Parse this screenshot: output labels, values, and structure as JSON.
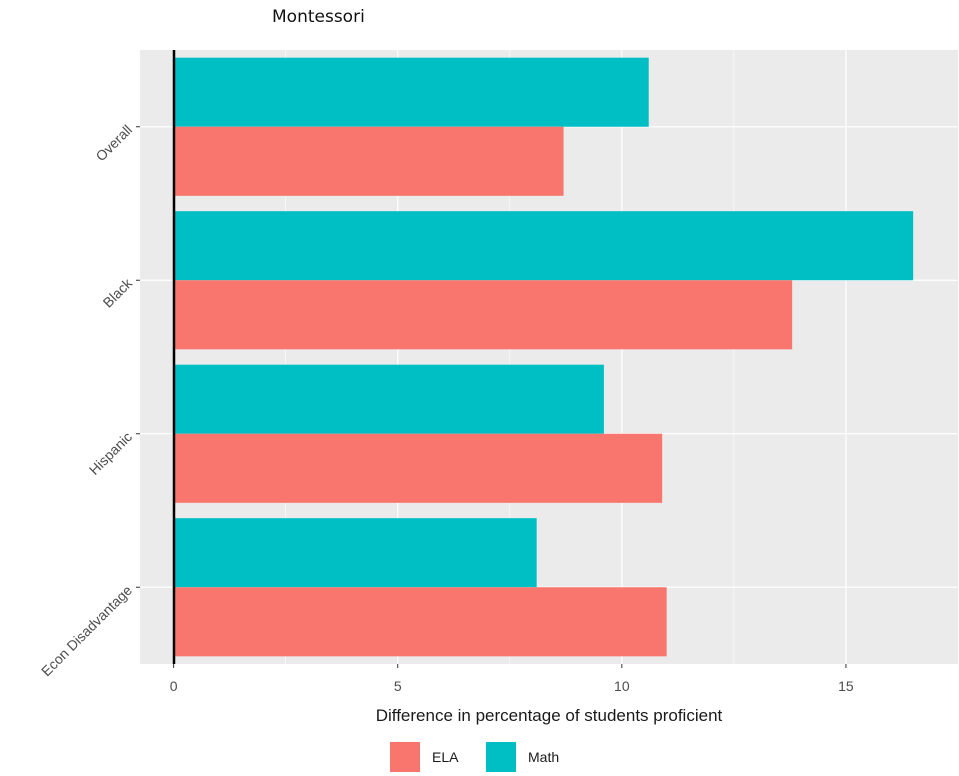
{
  "chart_data": {
    "type": "bar",
    "orientation": "horizontal",
    "title": "Montessori",
    "xlabel": "Difference in percentage of students proficient",
    "ylabel": "",
    "xlim": [
      -0.75,
      17.5
    ],
    "xticks": [
      0,
      5,
      10,
      15
    ],
    "grid": true,
    "legend_position": "bottom",
    "categories": [
      "Overall",
      "Black",
      "Hispanic",
      "Econ Disadvantage"
    ],
    "series": [
      {
        "name": "ELA",
        "color": "#F8766D",
        "values": [
          8.7,
          13.8,
          10.9,
          11.0
        ]
      },
      {
        "name": "Math",
        "color": "#00BFC4",
        "values": [
          10.6,
          16.5,
          9.6,
          8.1
        ]
      }
    ]
  }
}
